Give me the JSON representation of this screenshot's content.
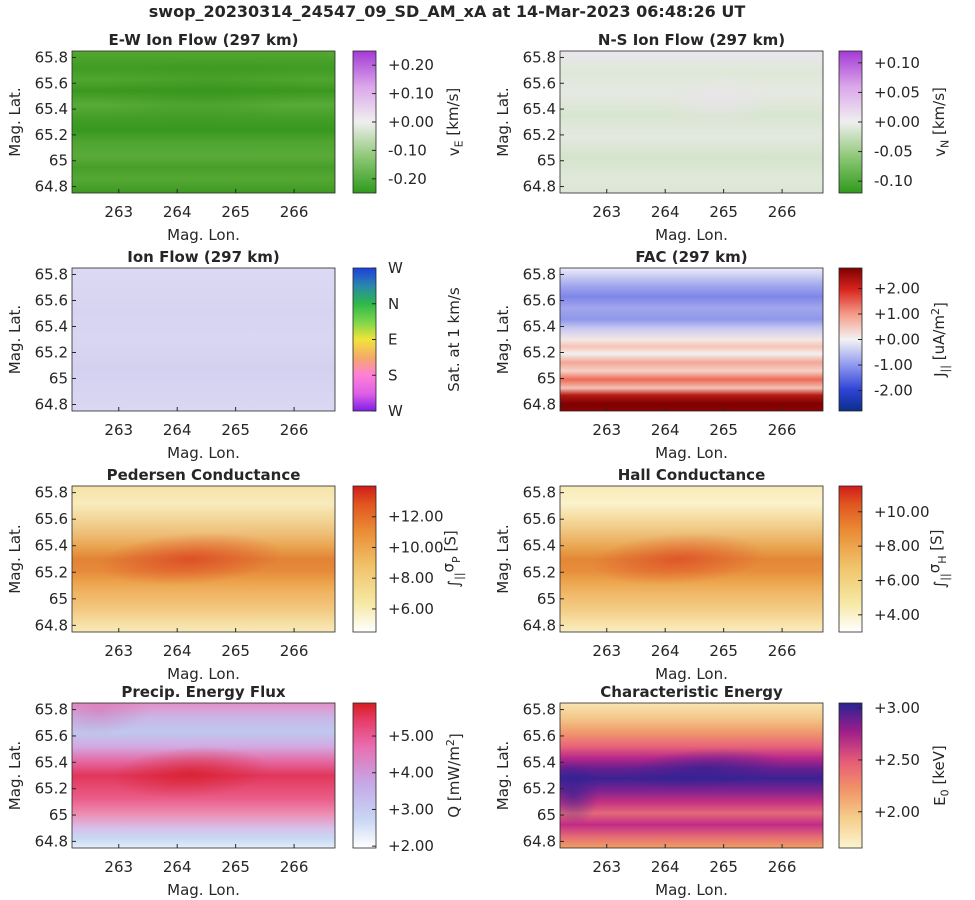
{
  "title": "swop_20230314_24547_09_SD_AM_xA at 14-Mar-2023 06:48:26 UT",
  "chart_data": [
    {
      "type": "heatmap",
      "id": "ew",
      "title": "E-W Ion Flow (297 km)",
      "xlabel": "Mag. Lon.",
      "ylabel": "Mag. Lat.",
      "xlim": [
        262.2,
        266.7
      ],
      "ylim": [
        64.75,
        65.85
      ],
      "xticks": [
        "263",
        "264",
        "265",
        "266"
      ],
      "xtick_values": [
        263,
        264,
        265,
        266
      ],
      "yticks": [
        "65.8",
        "65.6",
        "65.4",
        "65.2",
        "65",
        "64.8"
      ],
      "ytick_values": [
        65.8,
        65.6,
        65.4,
        65.2,
        65.0,
        64.8
      ],
      "colorbar_label": "v_E [km/s]",
      "colorbar_label_main": "v",
      "colorbar_label_sub": "E",
      "colorbar_label_unit": " [km/s]",
      "colormap": "green-white-purple",
      "clim": [
        -0.25,
        0.25
      ],
      "cbticks": [
        "+0.20",
        "+0.10",
        "+0.00",
        "-0.10",
        "-0.20"
      ],
      "cbtick_values": [
        0.2,
        0.1,
        0.0,
        -0.1,
        -0.2
      ]
    },
    {
      "type": "heatmap",
      "id": "ns",
      "title": "N-S Ion Flow (297 km)",
      "xlabel": "Mag. Lon.",
      "ylabel": "Mag. Lat.",
      "xlim": [
        262.2,
        266.7
      ],
      "ylim": [
        64.75,
        65.85
      ],
      "xticks": [
        "263",
        "264",
        "265",
        "266"
      ],
      "xtick_values": [
        263,
        264,
        265,
        266
      ],
      "yticks": [
        "65.8",
        "65.6",
        "65.4",
        "65.2",
        "65",
        "64.8"
      ],
      "ytick_values": [
        65.8,
        65.6,
        65.4,
        65.2,
        65.0,
        64.8
      ],
      "colorbar_label": "v_N [km/s]",
      "colorbar_label_main": "v",
      "colorbar_label_sub": "N",
      "colorbar_label_unit": " [km/s]",
      "colormap": "green-white-purple",
      "clim": [
        -0.12,
        0.12
      ],
      "cbticks": [
        "+0.10",
        "+0.05",
        "+0.00",
        "-0.05",
        "-0.10"
      ],
      "cbtick_values": [
        0.1,
        0.05,
        0.0,
        -0.05,
        -0.1
      ]
    },
    {
      "type": "heatmap",
      "id": "flow",
      "title": "Ion Flow (297 km)",
      "xlabel": "Mag. Lon.",
      "ylabel": "Mag. Lat.",
      "xlim": [
        262.2,
        266.7
      ],
      "ylim": [
        64.75,
        65.85
      ],
      "xticks": [
        "263",
        "264",
        "265",
        "266"
      ],
      "xtick_values": [
        263,
        264,
        265,
        266
      ],
      "yticks": [
        "65.8",
        "65.6",
        "65.4",
        "65.2",
        "65",
        "64.8"
      ],
      "ytick_values": [
        65.8,
        65.6,
        65.4,
        65.2,
        65.0,
        64.8
      ],
      "colorbar_label": "Sat. at 1 km/s",
      "colormap": "direction-wheel",
      "clim": [
        0,
        1
      ],
      "cbticks": [
        "W",
        "N",
        "E",
        "S",
        "W"
      ],
      "cbtick_values": [
        1.0,
        0.75,
        0.5,
        0.25,
        0.0
      ]
    },
    {
      "type": "heatmap",
      "id": "fac",
      "title": "FAC (297 km)",
      "xlabel": "Mag. Lon.",
      "ylabel": "Mag. Lat.",
      "xlim": [
        262.2,
        266.7
      ],
      "ylim": [
        64.75,
        65.85
      ],
      "xticks": [
        "263",
        "264",
        "265",
        "266"
      ],
      "xtick_values": [
        263,
        264,
        265,
        266
      ],
      "yticks": [
        "65.8",
        "65.6",
        "65.4",
        "65.2",
        "65",
        "64.8"
      ],
      "ytick_values": [
        65.8,
        65.6,
        65.4,
        65.2,
        65.0,
        64.8
      ],
      "colorbar_label": "J_|| [uA/m^2]",
      "colorbar_label_main": "J",
      "colorbar_label_sub": "||",
      "colorbar_label_unit": " [uA/m",
      "colorbar_label_sup": "2",
      "colorbar_label_tail": "]",
      "colormap": "blue-white-red",
      "clim": [
        -2.8,
        2.8
      ],
      "cbticks": [
        "+2.00",
        "+1.00",
        "+0.00",
        "-1.00",
        "-2.00"
      ],
      "cbtick_values": [
        2,
        1,
        0,
        -1,
        -2
      ]
    },
    {
      "type": "heatmap",
      "id": "ped",
      "title": "Pedersen Conductance",
      "xlabel": "Mag. Lon.",
      "ylabel": "Mag. Lat.",
      "xlim": [
        262.2,
        266.7
      ],
      "ylim": [
        64.75,
        65.85
      ],
      "xticks": [
        "263",
        "264",
        "265",
        "266"
      ],
      "xtick_values": [
        263,
        264,
        265,
        266
      ],
      "yticks": [
        "65.8",
        "65.6",
        "65.4",
        "65.2",
        "65",
        "64.8"
      ],
      "ytick_values": [
        65.8,
        65.6,
        65.4,
        65.2,
        65.0,
        64.8
      ],
      "colorbar_label": "∫_|| σ_P [S]",
      "colorbar_label_main": "∫",
      "colorbar_label_sub": "||",
      "colorbar_label_mid": "σ",
      "colorbar_label_sub2": "P",
      "colorbar_label_unit": " [S]",
      "colormap": "yellow-orange-red",
      "clim": [
        4.5,
        14.0
      ],
      "cbticks": [
        "+12.00",
        "+10.00",
        "+8.00",
        "+6.00"
      ],
      "cbtick_values": [
        12,
        10,
        8,
        6
      ]
    },
    {
      "type": "heatmap",
      "id": "hall",
      "title": "Hall Conductance",
      "xlabel": "Mag. Lon.",
      "ylabel": "Mag. Lat.",
      "xlim": [
        262.2,
        266.7
      ],
      "ylim": [
        64.75,
        65.85
      ],
      "xticks": [
        "263",
        "264",
        "265",
        "266"
      ],
      "xtick_values": [
        263,
        264,
        265,
        266
      ],
      "yticks": [
        "65.8",
        "65.6",
        "65.4",
        "65.2",
        "65",
        "64.8"
      ],
      "ytick_values": [
        65.8,
        65.6,
        65.4,
        65.2,
        65.0,
        64.8
      ],
      "colorbar_label": "∫_|| σ_H [S]",
      "colorbar_label_main": "∫",
      "colorbar_label_sub": "||",
      "colorbar_label_mid": "σ",
      "colorbar_label_sub2": "H",
      "colorbar_label_unit": " [S]",
      "colormap": "yellow-orange-red",
      "clim": [
        3.0,
        11.5
      ],
      "cbticks": [
        "+10.00",
        "+8.00",
        "+6.00",
        "+4.00"
      ],
      "cbtick_values": [
        10,
        8,
        6,
        4
      ]
    },
    {
      "type": "heatmap",
      "id": "q",
      "title": "Precip. Energy Flux",
      "xlabel": "Mag. Lon.",
      "ylabel": "Mag. Lat.",
      "xlim": [
        262.2,
        266.7
      ],
      "ylim": [
        64.75,
        65.85
      ],
      "xticks": [
        "263",
        "264",
        "265",
        "266"
      ],
      "xtick_values": [
        263,
        264,
        265,
        266
      ],
      "yticks": [
        "65.8",
        "65.6",
        "65.4",
        "65.2",
        "65",
        "64.8"
      ],
      "ytick_values": [
        65.8,
        65.6,
        65.4,
        65.2,
        65.0,
        64.8
      ],
      "colorbar_label": "Q [mW/m^2]",
      "colorbar_label_main": "Q [mW/m",
      "colorbar_label_sup": "2",
      "colorbar_label_tail": "]",
      "colormap": "white-blue-pink-red",
      "clim": [
        1.95,
        5.9
      ],
      "cbticks": [
        "+5.00",
        "+4.00",
        "+3.00",
        "+2.00"
      ],
      "cbtick_values": [
        5,
        4,
        3,
        2
      ]
    },
    {
      "type": "heatmap",
      "id": "e0",
      "title": "Characteristic Energy",
      "xlabel": "Mag. Lon.",
      "ylabel": "Mag. Lat.",
      "xlim": [
        262.2,
        266.7
      ],
      "ylim": [
        64.75,
        65.85
      ],
      "xticks": [
        "263",
        "264",
        "265",
        "266"
      ],
      "xtick_values": [
        263,
        264,
        265,
        266
      ],
      "yticks": [
        "65.8",
        "65.6",
        "65.4",
        "65.2",
        "65",
        "64.8"
      ],
      "ytick_values": [
        65.8,
        65.6,
        65.4,
        65.2,
        65.0,
        64.8
      ],
      "colorbar_label": "E_0 [keV]",
      "colorbar_label_main": "E",
      "colorbar_label_sub": "0",
      "colorbar_label_unit": " [keV]",
      "colormap": "cream-orange-magenta-navy",
      "clim": [
        1.65,
        3.05
      ],
      "cbticks": [
        "+3.00",
        "+2.50",
        "+2.00"
      ],
      "cbtick_values": [
        3.0,
        2.5,
        2.0
      ]
    }
  ]
}
